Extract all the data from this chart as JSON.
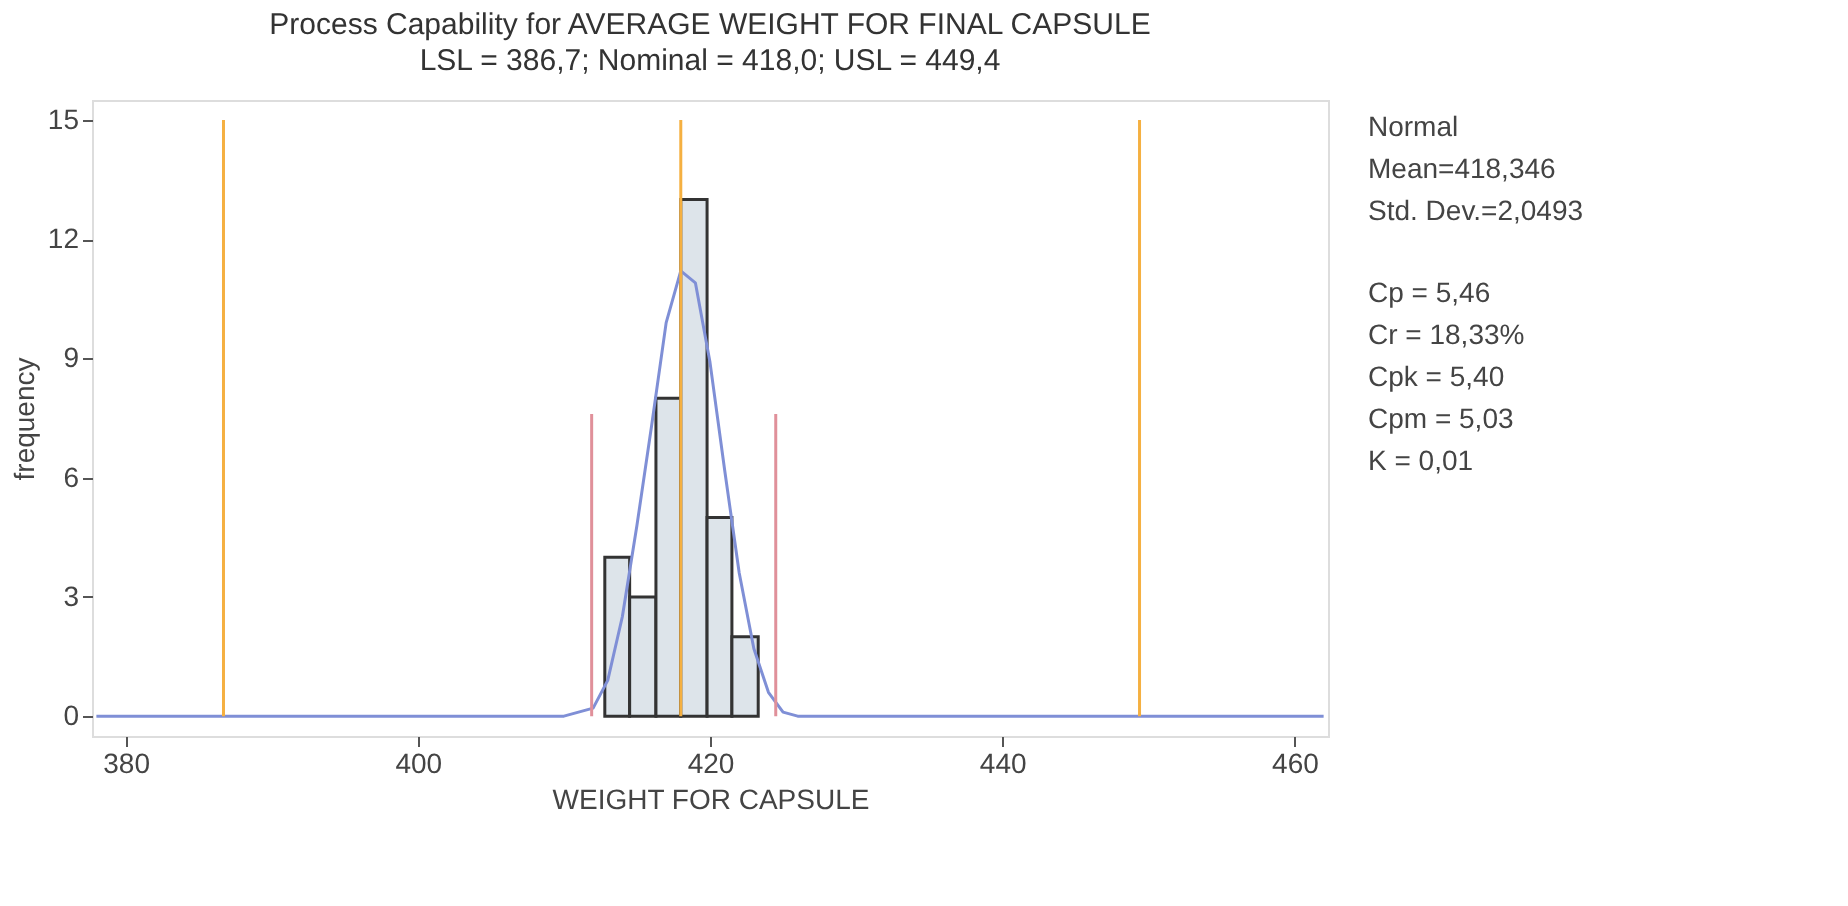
{
  "chart_data": {
    "type": "histogram",
    "title": "Process Capability for AVERAGE WEIGHT FOR FINAL CAPSULE",
    "subtitle": "LSL = 386,7; Nominal = 418,0; USL = 449,4",
    "xlabel": "WEIGHT FOR CAPSULE",
    "ylabel": "frequency",
    "bins": [
      412.8,
      414.5,
      416.3,
      418.0,
      419.8,
      421.5,
      423.3
    ],
    "values": [
      4,
      3,
      8,
      13,
      5,
      2
    ],
    "color": "#dde4ea",
    "series": [
      {
        "type": "line",
        "color": "#7f8fd6",
        "x": [
          378,
          410,
          412,
          413,
          414,
          415,
          416,
          417,
          418,
          419,
          420,
          421,
          422,
          423,
          424,
          425,
          426,
          462
        ],
        "values": [
          0,
          0,
          0.2,
          0.9,
          2.5,
          4.8,
          7.3,
          9.9,
          11.2,
          10.9,
          8.9,
          6.2,
          3.6,
          1.7,
          0.6,
          0.1,
          0,
          0
        ]
      },
      {
        "type": "line",
        "color": "#f5b041",
        "x": [
          386.7,
          386.7
        ],
        "values": [
          0,
          15
        ]
      },
      {
        "type": "line",
        "color": "#f5b041",
        "x": [
          418.0,
          418.0
        ],
        "values": [
          0,
          15
        ]
      },
      {
        "type": "line",
        "color": "#f5b041",
        "x": [
          449.4,
          449.4
        ],
        "values": [
          0,
          15
        ]
      },
      {
        "type": "line",
        "color": "#e0909a",
        "x": [
          411.9,
          411.9
        ],
        "values": [
          0,
          7.6
        ]
      },
      {
        "type": "line",
        "color": "#e0909a",
        "x": [
          424.5,
          424.5
        ],
        "values": [
          0,
          7.6
        ]
      }
    ],
    "xlim": [
      377.7,
      462.3
    ],
    "ylim": [
      -0.5,
      15.5
    ],
    "xticks": [
      380,
      400,
      420,
      440,
      460
    ],
    "yticks": [
      0,
      3,
      6,
      9,
      12,
      15
    ],
    "grid": false,
    "annotations": [
      "Normal",
      "Mean=418,346",
      "Std. Dev.=2,0493",
      "Cp = 5,46",
      "Cr = 18,33%",
      "Cpk = 5,40",
      "Cpm = 5,03",
      "K = 0,01"
    ]
  }
}
